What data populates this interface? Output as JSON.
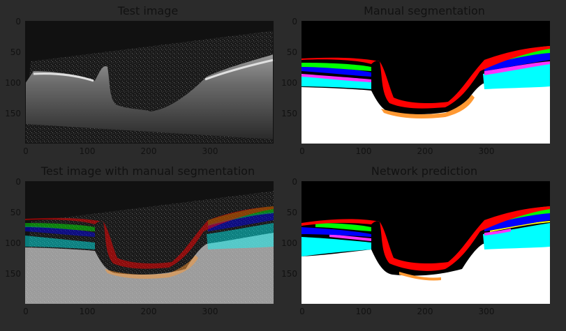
{
  "panels": [
    {
      "title": "Test image",
      "x_ticks": [
        "0",
        "100",
        "200",
        "300"
      ],
      "y_ticks": [
        "0",
        "50",
        "100",
        "150"
      ]
    },
    {
      "title": "Manual segmentation",
      "x_ticks": [
        "0",
        "100",
        "200",
        "300"
      ],
      "y_ticks": [
        "0",
        "50",
        "100",
        "150"
      ]
    },
    {
      "title": "Test image with manual segmentation",
      "x_ticks": [
        "0",
        "100",
        "200",
        "300"
      ],
      "y_ticks": [
        "0",
        "50",
        "100",
        "150"
      ]
    },
    {
      "title": "Network prediction",
      "x_ticks": [
        "0",
        "100",
        "200",
        "300"
      ],
      "y_ticks": [
        "0",
        "50",
        "100",
        "150"
      ]
    }
  ],
  "layer_colors": {
    "red": "#ff0000",
    "green": "#00ff00",
    "blue": "#0000ff",
    "yellow": "#ffff00",
    "magenta": "#ff33ff",
    "cyan": "#00ffff",
    "orange": "#ff9933",
    "white": "#ffffff",
    "black": "#000000"
  }
}
